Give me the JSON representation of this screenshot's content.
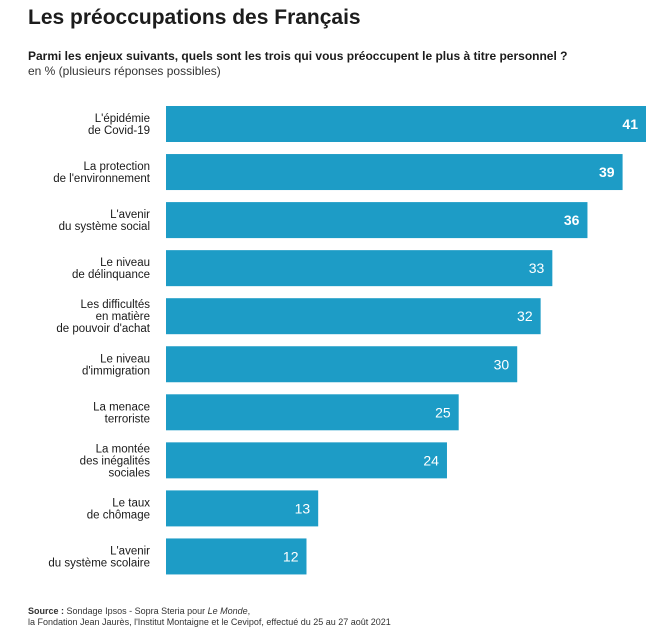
{
  "title": "Les préoccupations des Français",
  "subtitle": "Parmi les enjeux suivants, quels sont les trois qui vous préoccupent le plus à titre personnel ?",
  "unit_note": "en % (plusieurs réponses possibles)",
  "chart_data": {
    "type": "bar",
    "orientation": "horizontal",
    "title": "Les préoccupations des Français",
    "xlabel": "",
    "ylabel": "",
    "xlim": [
      0,
      41
    ],
    "categories": [
      [
        "L'épidémie",
        "de Covid-19"
      ],
      [
        "La protection",
        "de l'environnement"
      ],
      [
        "L'avenir",
        "du système social"
      ],
      [
        "Le niveau",
        "de délinquance"
      ],
      [
        "Les difficultés",
        "en matière",
        "de pouvoir d'achat"
      ],
      [
        "Le niveau",
        "d'immigration"
      ],
      [
        "La menace",
        "terroriste"
      ],
      [
        "La montée",
        "des inégalités",
        "sociales"
      ],
      [
        "Le taux",
        "de chômage"
      ],
      [
        "L'avenir",
        "du système scolaire"
      ]
    ],
    "values": [
      41,
      39,
      36,
      33,
      32,
      30,
      25,
      24,
      13,
      12
    ],
    "bold_value_count": 3,
    "color": "#1d9cc6"
  },
  "source": {
    "label": "Source :",
    "text1": "Sondage Ipsos - Sopra Steria pour",
    "text_italic": "Le Monde",
    "text2": ",",
    "line2": "la Fondation Jean Jaurès, l'Institut Montaigne et le Cevipof, effectué du 25 au 27 août 2021"
  }
}
